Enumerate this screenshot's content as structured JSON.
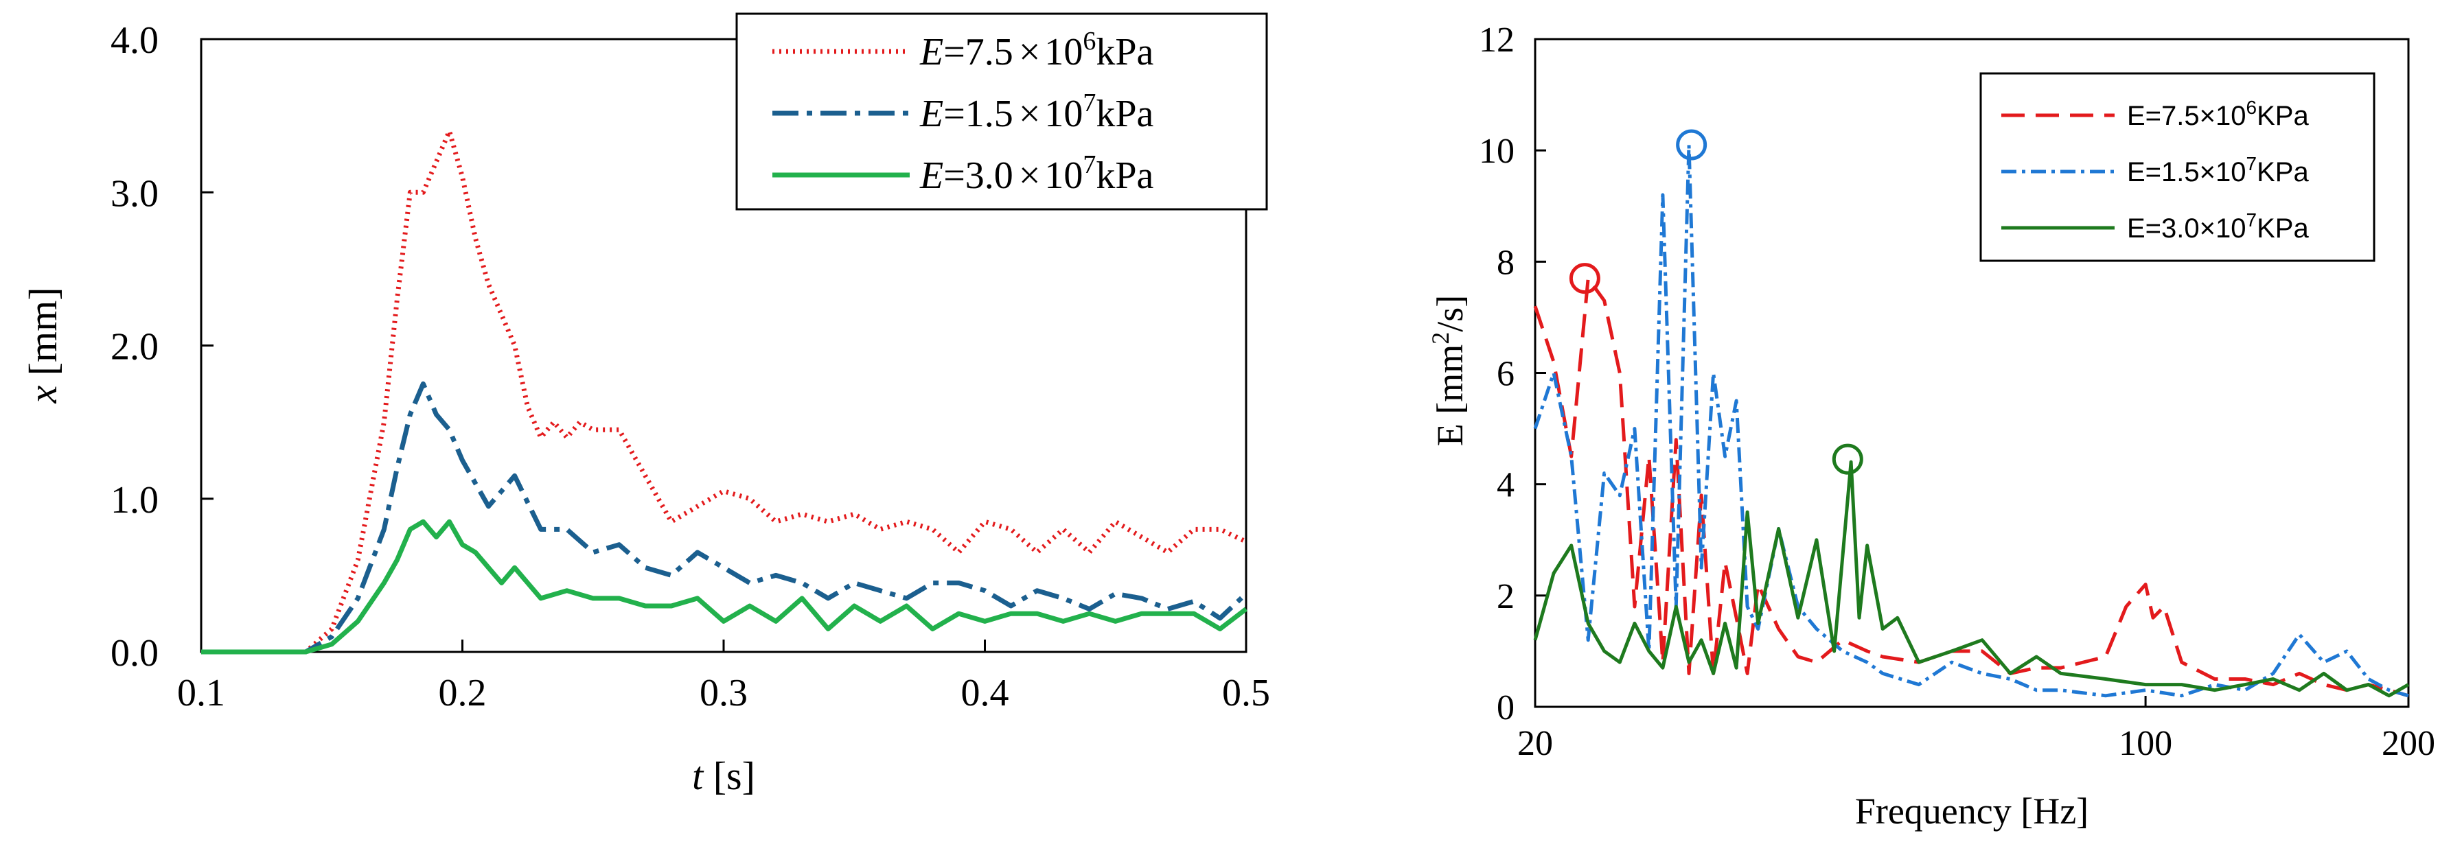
{
  "chart_data": [
    {
      "type": "line",
      "title": "",
      "xlabel_var": "t",
      "xlabel_unit": " [s]",
      "ylabel_var": "x",
      "ylabel_unit": " [mm]",
      "xlim": [
        0.1,
        0.5
      ],
      "ylim": [
        0,
        4.0
      ],
      "xticks": [
        "0.1",
        "0.2",
        "0.3",
        "0.4",
        "0.5"
      ],
      "yticks": [
        "0.0",
        "1.0",
        "2.0",
        "3.0",
        "4.0"
      ],
      "legend_position": "top-right",
      "series": [
        {
          "name": "E=7.5×10⁶kPa",
          "legend": {
            "pre": "E",
            "mid": "=7.5",
            "times": "×",
            "base": "10",
            "exp": "6",
            "unit": "kPa"
          },
          "color": "#e31a1c",
          "style": "dotted",
          "x": [
            0.1,
            0.14,
            0.15,
            0.16,
            0.17,
            0.175,
            0.18,
            0.185,
            0.19,
            0.195,
            0.2,
            0.205,
            0.21,
            0.215,
            0.22,
            0.225,
            0.23,
            0.235,
            0.24,
            0.245,
            0.25,
            0.26,
            0.27,
            0.28,
            0.29,
            0.3,
            0.31,
            0.32,
            0.33,
            0.34,
            0.35,
            0.36,
            0.37,
            0.38,
            0.39,
            0.4,
            0.41,
            0.42,
            0.43,
            0.44,
            0.45,
            0.46,
            0.47,
            0.48,
            0.49,
            0.5
          ],
          "values": [
            0.0,
            0.0,
            0.15,
            0.6,
            1.5,
            2.3,
            3.0,
            3.0,
            3.2,
            3.4,
            3.1,
            2.7,
            2.4,
            2.2,
            2.0,
            1.6,
            1.4,
            1.5,
            1.4,
            1.5,
            1.45,
            1.45,
            1.15,
            0.85,
            0.95,
            1.05,
            1.0,
            0.85,
            0.9,
            0.85,
            0.9,
            0.8,
            0.85,
            0.8,
            0.65,
            0.85,
            0.8,
            0.65,
            0.8,
            0.65,
            0.85,
            0.75,
            0.65,
            0.8,
            0.8,
            0.72
          ]
        },
        {
          "name": "E=1.5×10⁷kPa",
          "legend": {
            "pre": "E",
            "mid": "=1.5",
            "times": "×",
            "base": "10",
            "exp": "7",
            "unit": "kPa"
          },
          "color": "#1b5f8f",
          "style": "dashdot",
          "x": [
            0.1,
            0.14,
            0.15,
            0.16,
            0.17,
            0.175,
            0.18,
            0.185,
            0.19,
            0.195,
            0.2,
            0.205,
            0.21,
            0.215,
            0.22,
            0.23,
            0.24,
            0.25,
            0.26,
            0.27,
            0.28,
            0.29,
            0.3,
            0.31,
            0.32,
            0.33,
            0.34,
            0.35,
            0.36,
            0.37,
            0.38,
            0.39,
            0.4,
            0.41,
            0.42,
            0.43,
            0.44,
            0.45,
            0.46,
            0.47,
            0.48,
            0.49,
            0.5
          ],
          "values": [
            0.0,
            0.0,
            0.1,
            0.35,
            0.8,
            1.2,
            1.55,
            1.75,
            1.55,
            1.45,
            1.25,
            1.1,
            0.95,
            1.05,
            1.15,
            0.8,
            0.8,
            0.65,
            0.7,
            0.55,
            0.5,
            0.65,
            0.55,
            0.45,
            0.5,
            0.45,
            0.35,
            0.45,
            0.4,
            0.35,
            0.45,
            0.45,
            0.4,
            0.3,
            0.4,
            0.35,
            0.28,
            0.38,
            0.35,
            0.28,
            0.33,
            0.22,
            0.38
          ]
        },
        {
          "name": "E=3.0×10⁷kPa",
          "legend": {
            "pre": "E",
            "mid": "=3.0",
            "times": "×",
            "base": "10",
            "exp": "7",
            "unit": "kPa"
          },
          "color": "#22b14c",
          "style": "solid",
          "x": [
            0.1,
            0.14,
            0.15,
            0.16,
            0.17,
            0.175,
            0.18,
            0.185,
            0.19,
            0.195,
            0.2,
            0.205,
            0.21,
            0.215,
            0.22,
            0.23,
            0.24,
            0.25,
            0.26,
            0.27,
            0.28,
            0.29,
            0.3,
            0.31,
            0.32,
            0.33,
            0.34,
            0.35,
            0.36,
            0.37,
            0.38,
            0.39,
            0.4,
            0.41,
            0.42,
            0.43,
            0.44,
            0.45,
            0.46,
            0.47,
            0.48,
            0.49,
            0.5
          ],
          "values": [
            0.0,
            0.0,
            0.05,
            0.2,
            0.45,
            0.6,
            0.8,
            0.85,
            0.75,
            0.85,
            0.7,
            0.65,
            0.55,
            0.45,
            0.55,
            0.35,
            0.4,
            0.35,
            0.35,
            0.3,
            0.3,
            0.35,
            0.2,
            0.3,
            0.2,
            0.35,
            0.15,
            0.3,
            0.2,
            0.3,
            0.15,
            0.25,
            0.2,
            0.25,
            0.25,
            0.2,
            0.25,
            0.2,
            0.25,
            0.25,
            0.25,
            0.15,
            0.28
          ]
        }
      ]
    },
    {
      "type": "line",
      "title": "",
      "xlabel": "Frequency [Hz]",
      "ylabel_pre": "E  [mm",
      "ylabel_exp": "2",
      "ylabel_post": "/s]",
      "xscale": "log",
      "xlim": [
        20,
        200
      ],
      "ylim": [
        0,
        12
      ],
      "xticks": [
        20,
        100,
        200
      ],
      "xtick_labels": [
        "20",
        "100",
        "200"
      ],
      "yticks": [
        0,
        2,
        4,
        6,
        8,
        10,
        12
      ],
      "ytick_labels": [
        "0",
        "2",
        "4",
        "6",
        "8",
        "10",
        "12"
      ],
      "legend_position": "top-right",
      "series": [
        {
          "name": "E=7.5×10⁶KPa",
          "legend": {
            "mid": "E=7.5×10",
            "exp": "6",
            "unit": "KPa"
          },
          "color": "#e31a1c",
          "style": "dashed",
          "x": [
            20,
            21,
            22,
            23,
            24,
            25,
            26,
            27,
            28,
            29,
            30,
            31,
            32,
            33,
            34,
            35,
            36,
            38,
            40,
            42,
            45,
            48,
            50,
            55,
            60,
            65,
            70,
            75,
            80,
            90,
            95,
            100,
            102,
            105,
            110,
            120,
            130,
            140,
            150,
            160,
            170,
            180,
            190,
            200
          ],
          "values": [
            7.2,
            6.2,
            4.5,
            7.7,
            7.3,
            6.0,
            1.8,
            4.5,
            0.8,
            4.8,
            0.6,
            3.8,
            0.6,
            2.6,
            1.6,
            0.6,
            2.2,
            1.4,
            0.9,
            0.8,
            1.2,
            1.0,
            0.9,
            0.8,
            1.0,
            1.0,
            0.6,
            0.7,
            0.7,
            0.9,
            1.8,
            2.2,
            1.6,
            1.8,
            0.8,
            0.5,
            0.5,
            0.4,
            0.6,
            0.4,
            0.3,
            0.4,
            0.3,
            0.2
          ],
          "peak": {
            "x": 22.8,
            "y": 7.7
          }
        },
        {
          "name": "E=1.5×10⁷KPa",
          "legend": {
            "mid": "E=1.5×10",
            "exp": "7",
            "unit": "KPa"
          },
          "color": "#1f78d4",
          "style": "dashdot",
          "x": [
            20,
            21,
            22,
            23,
            24,
            25,
            26,
            27,
            28,
            29,
            30,
            31,
            32,
            33,
            34,
            35,
            36,
            38,
            40,
            42,
            45,
            48,
            50,
            55,
            60,
            65,
            70,
            75,
            80,
            90,
            100,
            110,
            120,
            130,
            140,
            150,
            160,
            170,
            180,
            190,
            200
          ],
          "values": [
            5.0,
            6.0,
            4.5,
            1.2,
            4.2,
            3.8,
            5.0,
            1.0,
            9.2,
            1.8,
            10.1,
            2.5,
            6.0,
            4.5,
            5.5,
            1.8,
            1.4,
            3.2,
            1.8,
            1.4,
            1.0,
            0.8,
            0.6,
            0.4,
            0.8,
            0.6,
            0.5,
            0.3,
            0.3,
            0.2,
            0.3,
            0.2,
            0.4,
            0.3,
            0.6,
            1.3,
            0.8,
            1.0,
            0.5,
            0.3,
            0.2
          ],
          "peak": {
            "x": 30.2,
            "y": 10.1
          }
        },
        {
          "name": "E=3.0×10⁷KPa",
          "legend": {
            "mid": "E=3.0×10",
            "exp": "7",
            "unit": "KPa"
          },
          "color": "#1e7a1e",
          "style": "solid",
          "x": [
            20,
            21,
            22,
            23,
            24,
            25,
            26,
            27,
            28,
            29,
            30,
            31,
            32,
            33,
            34,
            35,
            36,
            38,
            40,
            42,
            44,
            46,
            47,
            48,
            50,
            52,
            55,
            60,
            65,
            70,
            75,
            80,
            90,
            100,
            110,
            120,
            130,
            140,
            150,
            160,
            170,
            180,
            190,
            200
          ],
          "values": [
            1.2,
            2.4,
            2.9,
            1.5,
            1.0,
            0.8,
            1.5,
            1.0,
            0.7,
            1.8,
            0.8,
            1.2,
            0.6,
            1.5,
            0.7,
            3.5,
            1.5,
            3.2,
            1.6,
            3.0,
            1.0,
            4.4,
            1.6,
            2.9,
            1.4,
            1.6,
            0.8,
            1.0,
            1.2,
            0.6,
            0.9,
            0.6,
            0.5,
            0.4,
            0.4,
            0.3,
            0.4,
            0.5,
            0.3,
            0.6,
            0.3,
            0.4,
            0.2,
            0.4
          ],
          "peak": {
            "x": 45.6,
            "y": 4.45
          }
        }
      ]
    }
  ]
}
